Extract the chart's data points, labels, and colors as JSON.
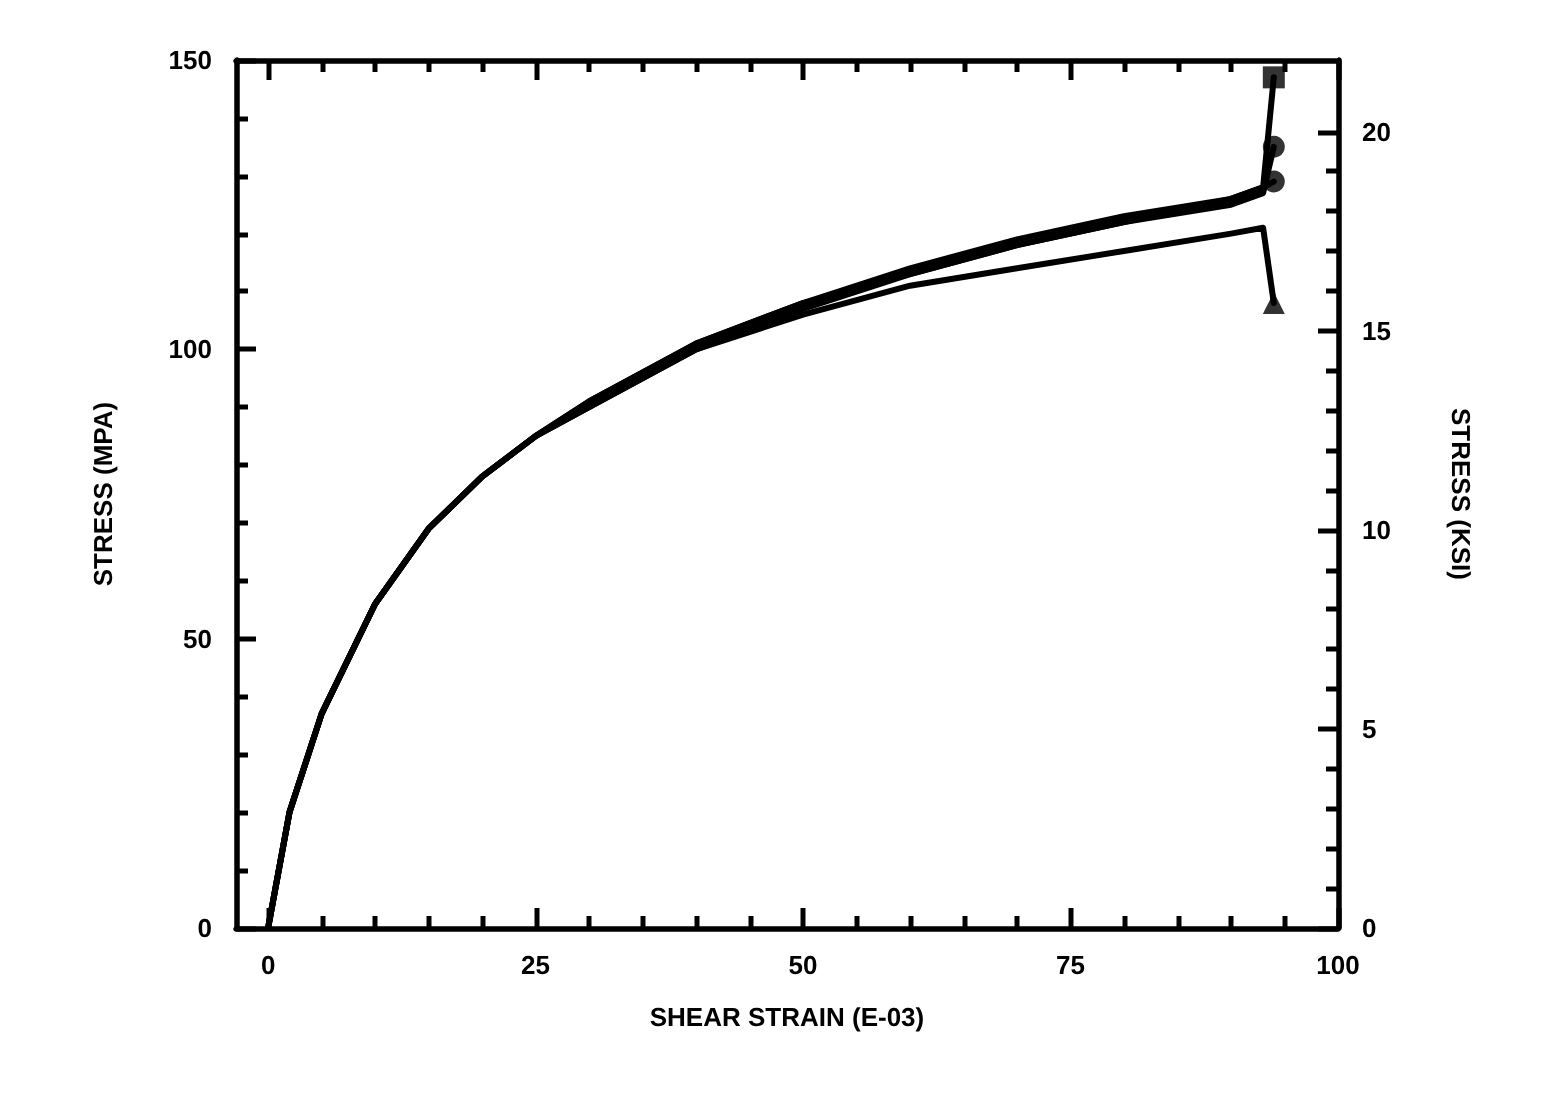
{
  "chart_data": {
    "type": "line",
    "xlabel": "SHEAR STRAIN (E-03)",
    "ylabel": "STRESS (MPA)",
    "y2label": "STRESS (KSI)",
    "xlim": [
      -3,
      100
    ],
    "xticks": [
      0,
      25,
      50,
      75,
      100
    ],
    "ylim": [
      0,
      150
    ],
    "yticks": [
      0,
      50,
      100,
      150
    ],
    "y2lim": [
      0,
      21.8
    ],
    "y2ticks": [
      0,
      5,
      10,
      15,
      20
    ],
    "grid": false,
    "line_style": "solid",
    "series": [
      {
        "color": "#000000",
        "x": [
          0,
          2,
          5,
          10,
          15,
          20,
          25,
          30,
          40,
          50,
          60,
          70,
          80,
          90,
          93,
          94
        ],
        "values": [
          0,
          20,
          37,
          56,
          69,
          78,
          85,
          91,
          101,
          108,
          114,
          119,
          123,
          126,
          128,
          147
        ]
      },
      {
        "color": "#000000",
        "x": [
          0,
          2,
          5,
          10,
          15,
          20,
          25,
          30,
          40,
          50,
          60,
          70,
          80,
          90,
          93,
          94
        ],
        "values": [
          0,
          20,
          37,
          56,
          69,
          78,
          85,
          91,
          101,
          108,
          113,
          118,
          122,
          125,
          127,
          135
        ]
      },
      {
        "color": "#000000",
        "x": [
          0,
          2,
          5,
          10,
          15,
          20,
          25,
          30,
          40,
          50,
          60,
          70,
          80,
          90,
          93,
          94
        ],
        "values": [
          0,
          20,
          37,
          56,
          69,
          78,
          85,
          90,
          100,
          107,
          113,
          118,
          122,
          126,
          128,
          129
        ]
      },
      {
        "color": "#000000",
        "x": [
          0,
          2,
          5,
          10,
          15,
          20,
          25,
          30,
          40,
          50,
          60,
          70,
          80,
          90,
          93,
          94
        ],
        "values": [
          0,
          20,
          37,
          56,
          69,
          78,
          85,
          90,
          100,
          106,
          111,
          114,
          117,
          120,
          121,
          108
        ]
      },
      {
        "type": "scatter",
        "color": "#000000",
        "marker": "square",
        "x": [
          94
        ],
        "values": [
          147
        ]
      },
      {
        "type": "scatter",
        "color": "#000000",
        "marker": "circle",
        "x": [
          94
        ],
        "values": [
          135
        ]
      },
      {
        "type": "scatter",
        "color": "#000000",
        "marker": "circle",
        "x": [
          94
        ],
        "values": [
          129
        ]
      },
      {
        "type": "scatter",
        "color": "#000000",
        "marker": "triangle",
        "x": [
          94
        ],
        "values": [
          108
        ]
      }
    ]
  }
}
